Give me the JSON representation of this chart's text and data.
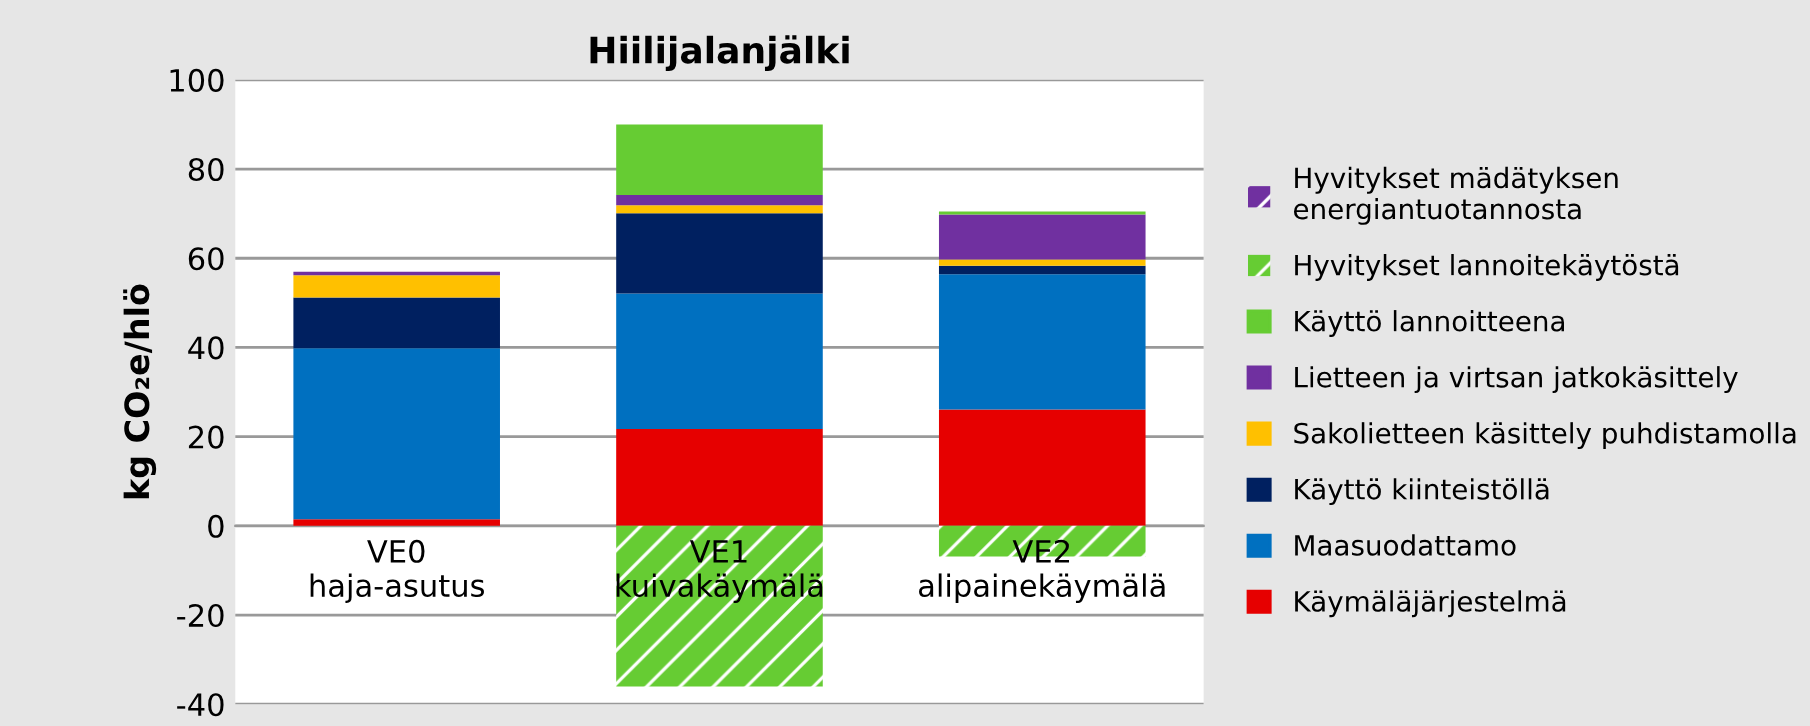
{
  "chart_data": {
    "type": "bar",
    "title": "Hiilijalanjälki",
    "ylabel": "kg CO₂e/hlö",
    "categories": [
      "VE0\nhaja-asutus",
      "VE1\nkuivakäymälä",
      "VE2\nalipainekäymälä"
    ],
    "stacked": true,
    "ylim": [
      -40,
      100
    ],
    "yticks": [
      -40,
      -20,
      0,
      20,
      40,
      60,
      80,
      100
    ],
    "grid": "y",
    "legend": "right",
    "series": [
      {
        "name": "Käymäläjärjestelmä",
        "color": "#e60000",
        "values": [
          1.5,
          21.7,
          26.1
        ]
      },
      {
        "name": "Maasuodattamo",
        "color": "#0070c0",
        "values": [
          38.3,
          30.4,
          30.3
        ]
      },
      {
        "name": "Käyttö kiinteistöllä",
        "color": "#002060",
        "values": [
          11.4,
          18.0,
          1.9
        ]
      },
      {
        "name": "Sakolietteen käsittely puhdistamolla",
        "color": "#ffc000",
        "values": [
          5.0,
          1.8,
          1.4
        ]
      },
      {
        "name": "Lietteen ja virtsan jatkokäsittely",
        "color": "#7030a0",
        "values": [
          0.8,
          2.3,
          10.1
        ]
      },
      {
        "name": "Käyttö lannoitteena",
        "color": "#66cc33",
        "values": [
          0,
          15.8,
          0.7
        ]
      },
      {
        "name": "Hyvitykset lannoitekäytöstä",
        "color": "#66cc33",
        "values": [
          0,
          -36.0,
          -6.9
        ]
      },
      {
        "name": "Hyvitykset mädätyksen\nenergiantuotannosta",
        "color": "#7030a0",
        "values": [
          0,
          0,
          0
        ]
      }
    ]
  }
}
